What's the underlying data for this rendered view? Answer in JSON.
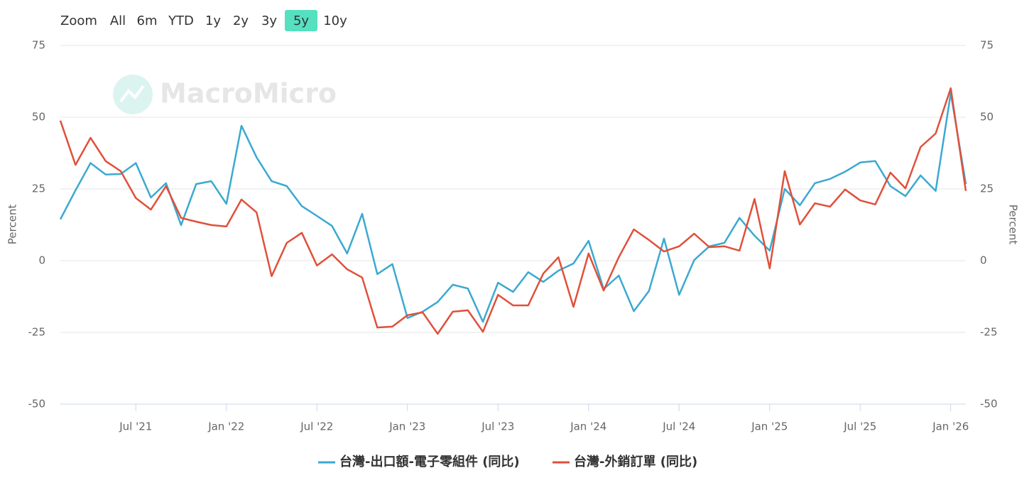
{
  "range_selector": {
    "label": "Zoom",
    "buttons": [
      "All",
      "6m",
      "YTD",
      "1y",
      "2y",
      "3y",
      "5y",
      "10y"
    ],
    "selected": 6
  },
  "watermark": "MacroMicro",
  "chart_data": {
    "type": "line",
    "categories": [
      null,
      null,
      null,
      null,
      null,
      "Jul '21",
      null,
      null,
      null,
      null,
      null,
      "Jan '22",
      null,
      null,
      null,
      null,
      null,
      "Jul '22",
      null,
      null,
      null,
      null,
      null,
      "Jan '23",
      null,
      null,
      null,
      null,
      null,
      "Jul '23",
      null,
      null,
      null,
      null,
      null,
      "Jan '24",
      null,
      null,
      null,
      null,
      null,
      "Jul '24",
      null,
      null,
      null,
      null,
      null,
      "Jan '25",
      null,
      null,
      null,
      null,
      null,
      "Jul '25",
      null,
      null,
      null,
      null,
      null,
      "Jan '26",
      null
    ],
    "series": [
      {
        "name": "台灣-出口額-電子零組件 (同比)",
        "color": "#3ba9d0",
        "values": [
          14.4,
          24.5,
          34,
          30,
          30.2,
          34,
          22,
          27,
          12.4,
          26.7,
          27.7,
          19.8,
          47,
          36,
          27.7,
          26,
          19,
          15.6,
          12.1,
          2.5,
          16.3,
          -4.7,
          -1.2,
          -20,
          -17.8,
          -14.4,
          -8.4,
          -9.7,
          -21.3,
          -7.7,
          -10.9,
          -4,
          -7.4,
          -3.5,
          -1,
          6.9,
          -9.9,
          -5.2,
          -17.6,
          -10.6,
          7.7,
          -11.9,
          0.2,
          5,
          6.2,
          14.9,
          8.7,
          3.5,
          25,
          19.3,
          27,
          28.5,
          31,
          34.2,
          34.7,
          26,
          22.5,
          29.7,
          24.3,
          58.4,
          26.7
        ]
      },
      {
        "name": "台灣-外銷訂單 (同比)",
        "color": "#e0503a",
        "values": [
          48.8,
          33.4,
          42.8,
          34.7,
          31.2,
          21.8,
          17.8,
          26,
          14.9,
          13.6,
          12.4,
          11.9,
          21.3,
          16.8,
          -5.4,
          6.2,
          9.7,
          -1.7,
          2.2,
          -3,
          -5.9,
          -23.3,
          -23,
          -19,
          -18,
          -25.5,
          -17.8,
          -17.3,
          -24.8,
          -11.9,
          -15.6,
          -15.6,
          -4.5,
          1.2,
          -16.1,
          2.5,
          -10.4,
          1.2,
          10.9,
          7.2,
          3.2,
          5,
          9.4,
          4.7,
          5,
          3.5,
          21.5,
          -2.7,
          31.2,
          12.6,
          20,
          18.8,
          24.8,
          21,
          19.6,
          30.7,
          25.2,
          39.6,
          44.3,
          60.1,
          24.3
        ]
      }
    ],
    "ylim": [
      -50,
      75
    ],
    "yticks": [
      -50,
      -25,
      0,
      25,
      50,
      75
    ],
    "y2lim": [
      -50,
      75
    ],
    "y2ticks": [
      -50,
      -25,
      0,
      25,
      50,
      75
    ],
    "y_label": "Percent",
    "y2_label": "Percent",
    "grid": true
  }
}
